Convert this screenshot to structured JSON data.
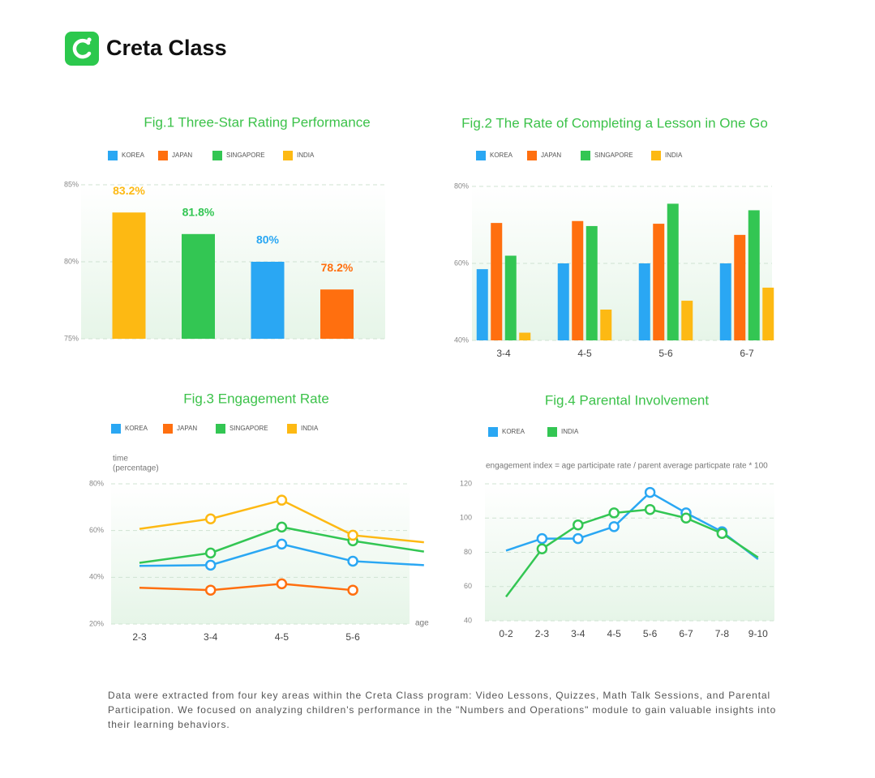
{
  "header": {
    "logo_text": "Creta Class"
  },
  "chart_data": [
    {
      "type": "bar",
      "title": "Fig.1 Three-Star Rating Performance",
      "series": [
        {
          "name": "KOREA",
          "color": "#2aa7f3",
          "values": [
            80
          ],
          "value_labels": [
            "80%"
          ]
        },
        {
          "name": "JAPAN",
          "color": "#ff6f0f",
          "values": [
            78.2
          ],
          "value_labels": [
            "78.2%"
          ]
        },
        {
          "name": "SINGAPORE",
          "color": "#33c653",
          "values": [
            81.8
          ],
          "value_labels": [
            "81.8%"
          ]
        },
        {
          "name": "INDIA",
          "color": "#fdb913",
          "values": [
            83.2
          ],
          "value_labels": [
            "83.2%"
          ]
        }
      ],
      "ylim": [
        75,
        85
      ],
      "yticks": [
        {
          "value": 75,
          "label": "75%"
        },
        {
          "value": 80,
          "label": "80%"
        },
        {
          "value": 85,
          "label": "85%"
        }
      ],
      "grid": true
    },
    {
      "type": "bar",
      "title": "Fig.2 The Rate of Completing a Lesson in One Go",
      "categories": [
        "3-4",
        "4-5",
        "5-6",
        "6-7"
      ],
      "series": [
        {
          "name": "KOREA",
          "color": "#2aa7f3",
          "values": [
            58.5,
            60,
            60,
            60
          ]
        },
        {
          "name": "JAPAN",
          "color": "#ff6f0f",
          "values": [
            70.5,
            71,
            70.3,
            67.4
          ]
        },
        {
          "name": "SINGAPORE",
          "color": "#33c653",
          "values": [
            62,
            69.7,
            75.5,
            73.8
          ]
        },
        {
          "name": "INDIA",
          "color": "#fdb913",
          "values": [
            42,
            48,
            50.3,
            53.7
          ]
        }
      ],
      "ylim": [
        40,
        80
      ],
      "yticks": [
        {
          "value": 40,
          "label": "40%"
        },
        {
          "value": 60,
          "label": "60%"
        },
        {
          "value": 80,
          "label": "80%"
        }
      ],
      "grid": true
    },
    {
      "type": "line",
      "title": "Fig.3 Engagement Rate",
      "ylabel": [
        "time",
        "(percentage)"
      ],
      "xlabel": "age",
      "categories": [
        "2-3",
        "3-4",
        "4-5",
        "5-6",
        null
      ],
      "series": [
        {
          "name": "KOREA",
          "color": "#2aa7f3",
          "values": [
            44.9,
            45.2,
            54.2,
            46.9,
            45.2
          ]
        },
        {
          "name": "JAPAN",
          "color": "#ff6f0f",
          "values": [
            35.5,
            34.5,
            37.2,
            34.5,
            null
          ]
        },
        {
          "name": "SINGAPORE",
          "color": "#33c653",
          "values": [
            46.2,
            50.4,
            61.5,
            55.6,
            51
          ]
        },
        {
          "name": "INDIA",
          "color": "#fdb913",
          "values": [
            60.7,
            65,
            73,
            58,
            55
          ]
        }
      ],
      "ylim": [
        20,
        80
      ],
      "yticks": [
        {
          "value": 20,
          "label": "20%"
        },
        {
          "value": 40,
          "label": "40%"
        },
        {
          "value": 60,
          "label": "60%"
        },
        {
          "value": 80,
          "label": "80%"
        }
      ],
      "grid": true
    },
    {
      "type": "line",
      "title": "Fig.4 Parental Involvement",
      "subtitle": "engagement index = age participate rate / parent average particpate rate * 100",
      "categories": [
        "0-2",
        "2-3",
        "3-4",
        "4-5",
        "5-6",
        "6-7",
        "7-8",
        "9-10"
      ],
      "series": [
        {
          "name": "KOREA",
          "color": "#2aa7f3",
          "values": [
            81,
            88,
            88,
            95,
            115,
            103,
            92,
            76
          ]
        },
        {
          "name": "INDIA",
          "color": "#33c653",
          "values": [
            54,
            82,
            96,
            103,
            105,
            100,
            91,
            77
          ]
        }
      ],
      "ylim": [
        40,
        120
      ],
      "yticks": [
        40,
        60,
        80,
        100,
        120
      ],
      "grid": true
    }
  ],
  "footer": {
    "text": "Data were extracted from four key areas within the Creta Class program: Video Lessons, Quizzes, Math Talk Sessions, and Parental Participation. We focused on analyzing children's performance in the \"Numbers and Operations\" module to gain valuable insights into their learning behaviors."
  }
}
